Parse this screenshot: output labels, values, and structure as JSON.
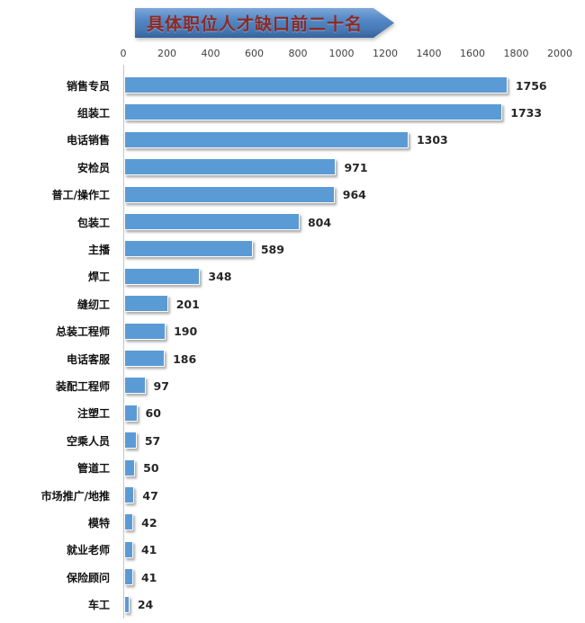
{
  "title": "具体职位人才缺口前二十名",
  "colors": {
    "bar_fill": "#5b9bd5",
    "bar_border": "#fdfdfd",
    "banner_top": "#7fa8d9",
    "banner_bottom": "#35639c",
    "title_text": "#8b2a26",
    "axis_line": "#c6c6c6",
    "category_text": "#111111",
    "value_text": "#262626"
  },
  "chart_data": {
    "type": "bar",
    "orientation": "horizontal",
    "title": "具体职位人才缺口前二十名",
    "categories": [
      "销售专员",
      "组装工",
      "电话销售",
      "安检员",
      "普工/操作工",
      "包装工",
      "主播",
      "焊工",
      "缝纫工",
      "总装工程师",
      "电话客服",
      "装配工程师",
      "注塑工",
      "空乘人员",
      "管道工",
      "市场推广/地推",
      "模特",
      "就业老师",
      "保险顾问",
      "车工"
    ],
    "values": [
      1756,
      1733,
      1303,
      971,
      964,
      804,
      589,
      348,
      201,
      190,
      186,
      97,
      60,
      57,
      50,
      47,
      42,
      41,
      41,
      24
    ],
    "xlim": [
      0,
      2000
    ],
    "x_ticks": [
      0,
      200,
      400,
      600,
      800,
      1000,
      1200,
      1400,
      1600,
      1800,
      2000
    ],
    "xlabel": "",
    "ylabel": "",
    "grid": false,
    "legend": false,
    "value_labels_shown": true,
    "axis_position": "top"
  }
}
